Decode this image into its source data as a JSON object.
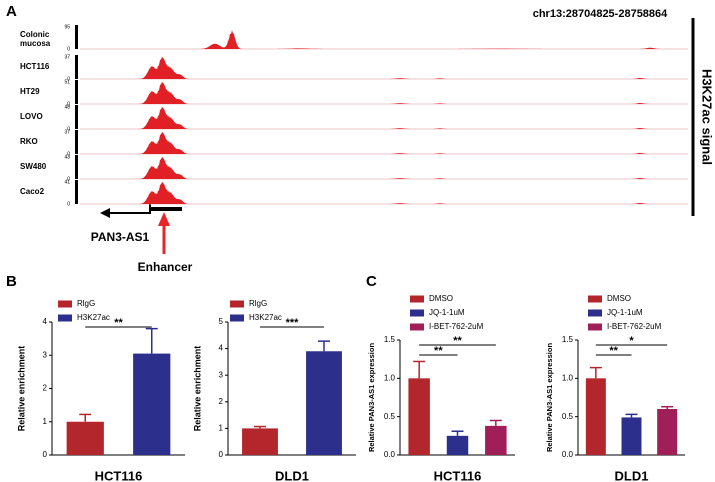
{
  "panel_labels": [
    "A",
    "B",
    "C"
  ],
  "chart_data": [
    {
      "type": "tracks",
      "title": "chr13:28704825-28758864",
      "y_label": "H3K27ac signal",
      "tracks": [
        {
          "name": "Colonic mucosa",
          "ylim": [
            0,
            95
          ],
          "yticks": [
            0,
            95
          ]
        },
        {
          "name": "HCT116",
          "ylim": [
            0,
            37
          ],
          "yticks": [
            0,
            37
          ]
        },
        {
          "name": "HT29",
          "ylim": [
            0,
            51
          ],
          "yticks": [
            0,
            51
          ]
        },
        {
          "name": "LOVO",
          "ylim": [
            0,
            48
          ],
          "yticks": [
            0,
            48
          ]
        },
        {
          "name": "RKO",
          "ylim": [
            0,
            37
          ],
          "yticks": [
            0,
            37
          ]
        },
        {
          "name": "SW480",
          "ylim": [
            0,
            43
          ],
          "yticks": [
            0,
            43
          ]
        },
        {
          "name": "Caco2",
          "ylim": [
            0,
            41
          ],
          "yticks": [
            0,
            41
          ]
        }
      ],
      "gene_label": "PAN3-AS1",
      "enhancer_label": "Enhancer"
    },
    {
      "type": "bar",
      "x_label": "HCT116",
      "y_label": "Relative enrichment",
      "categories": [
        "RlgG",
        "H3K27ac"
      ],
      "colors": [
        "#b3262b",
        "#2d2f8c"
      ],
      "values": [
        1.0,
        3.05
      ],
      "errors": [
        0.22,
        0.75
      ],
      "ylim": [
        0,
        4
      ],
      "yticks": [
        0,
        1,
        2,
        3,
        4
      ],
      "significance": [
        "**"
      ]
    },
    {
      "type": "bar",
      "x_label": "DLD1",
      "y_label": "Relative enrichment",
      "categories": [
        "RlgG",
        "H3K27ac"
      ],
      "colors": [
        "#b3262b",
        "#2d2f8c"
      ],
      "values": [
        1.0,
        3.9
      ],
      "errors": [
        0.07,
        0.38
      ],
      "ylim": [
        0,
        5
      ],
      "yticks": [
        0,
        1,
        2,
        3,
        4,
        5
      ],
      "significance": [
        "***"
      ]
    },
    {
      "type": "bar",
      "x_label": "HCT116",
      "y_label": "Relative PAN3-AS1 expression",
      "categories": [
        "DMSO",
        "JQ-1-1uM",
        "I-BET-762-2uM"
      ],
      "colors": [
        "#b3262b",
        "#2d2f8c",
        "#a01f58"
      ],
      "values": [
        1.0,
        0.25,
        0.38
      ],
      "errors": [
        0.22,
        0.06,
        0.07
      ],
      "ylim": [
        0,
        1.5
      ],
      "yticks": [
        {
          "value": 0,
          "label": "0.0"
        },
        0.5,
        {
          "value": 1,
          "label": "1.0"
        },
        1.5
      ],
      "significance": [
        "**",
        "**"
      ]
    },
    {
      "type": "bar",
      "x_label": "DLD1",
      "y_label": "Relative PAN3-AS1 expression",
      "categories": [
        "DMSO",
        "JQ-1-1uM",
        "I-BET-762-2uM"
      ],
      "colors": [
        "#b3262b",
        "#2d2f8c",
        "#a01f58"
      ],
      "values": [
        1.0,
        0.49,
        0.6
      ],
      "errors": [
        0.14,
        0.04,
        0.03
      ],
      "ylim": [
        0,
        1.5
      ],
      "yticks": [
        {
          "value": 0,
          "label": "0.0"
        },
        0.5,
        {
          "value": 1,
          "label": "1.0"
        },
        1.5
      ],
      "significance": [
        "**",
        "*"
      ]
    }
  ]
}
